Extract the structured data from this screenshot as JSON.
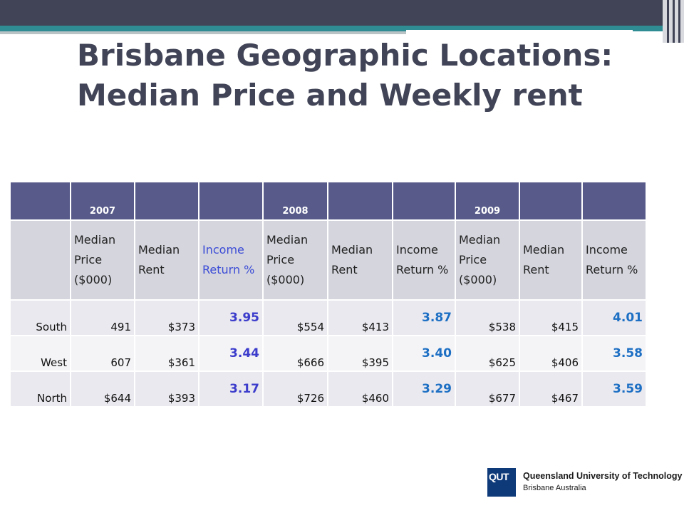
{
  "slide": {
    "title_line1": "Brisbane Geographic Locations:",
    "title_line2": "Median Price and Weekly rent"
  },
  "table": {
    "years": [
      "",
      "2007",
      "",
      "",
      "2008",
      "",
      "",
      "2009",
      "",
      ""
    ],
    "headers": [
      "",
      "Median Price ($000)",
      "Median Rent",
      "Income Return %",
      "Median Price ($000)",
      "Median Rent",
      "Income Return %",
      "Median Price ($000)",
      "Median Rent",
      "Income Return %"
    ],
    "rows": [
      {
        "region": "South",
        "cells": [
          "491",
          "$373",
          "3.95",
          "$554",
          "$413",
          "3.87",
          "$538",
          "$415",
          "4.01"
        ]
      },
      {
        "region": "West",
        "cells": [
          "607",
          "$361",
          "3.44",
          "$666",
          "$395",
          "3.40",
          "$625",
          "$406",
          "3.58"
        ]
      },
      {
        "region": "North",
        "cells": [
          "$644",
          "$393",
          "3.17",
          "$726",
          "$460",
          "3.29",
          "$677",
          "$467",
          "3.59"
        ]
      }
    ]
  },
  "logo": {
    "mark": "QUT",
    "name": "Queensland University of Technology",
    "sub": "Brisbane Australia"
  },
  "colors": {
    "header_bar": "#585b8a",
    "title": "#414456",
    "return_2007": "#3c3ccc",
    "return_2008_2009": "#1d6fc4"
  }
}
